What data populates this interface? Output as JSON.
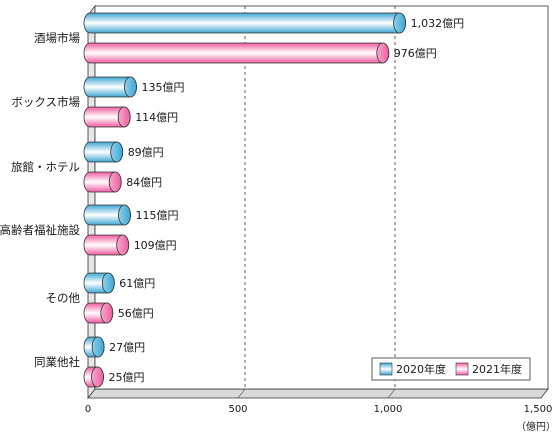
{
  "chart_data": {
    "type": "bar",
    "orientation": "horizontal",
    "categories": [
      "酒場市場",
      "ボックス市場",
      "旅館・ホテル",
      "高齢者福祉施設",
      "その他",
      "同業他社"
    ],
    "series": [
      {
        "name": "2020年度",
        "values": [
          1032,
          135,
          89,
          115,
          61,
          27
        ],
        "labels": [
          "1,032億円",
          "135億円",
          "89億円",
          "115億円",
          "61億円",
          "27億円"
        ],
        "color": "#4fb3d9"
      },
      {
        "name": "2021年度",
        "values": [
          976,
          114,
          84,
          109,
          56,
          25
        ],
        "labels": [
          "976億円",
          "114億円",
          "84億円",
          "109億円",
          "56億円",
          "25億円"
        ],
        "color": "#f06aa6"
      }
    ],
    "xlim": [
      0,
      1500
    ],
    "xticks": [
      0,
      500,
      1000,
      1500
    ],
    "xtick_labels": [
      "0",
      "500",
      "1,000",
      "1,500"
    ],
    "x_unit": "（億円）",
    "grid": "vertical dashed at 500 and 1000",
    "legend": "bottom-right"
  }
}
